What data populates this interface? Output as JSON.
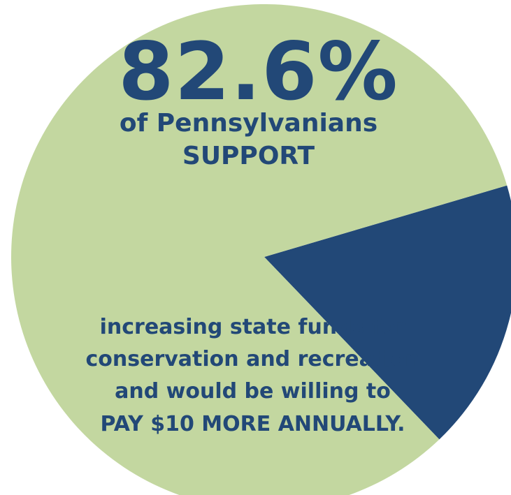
{
  "chart_data": {
    "type": "pie",
    "slices": [
      {
        "label": "Support",
        "value": 82.6,
        "color": "#c3d7a0"
      },
      {
        "label": "",
        "value": 17.4,
        "color": "#224877"
      }
    ],
    "title": "82.6%",
    "subtitle_lines": [
      "of Pennsylvanians",
      "SUPPORT"
    ],
    "body_lines": [
      "increasing state funds for",
      "conservation and recreation",
      "and would be willing to",
      "PAY $10 MORE ANNUALLY."
    ]
  },
  "colors": {
    "support_fill": "#c3d7a0",
    "other_fill": "#224877",
    "text": "#224877"
  }
}
